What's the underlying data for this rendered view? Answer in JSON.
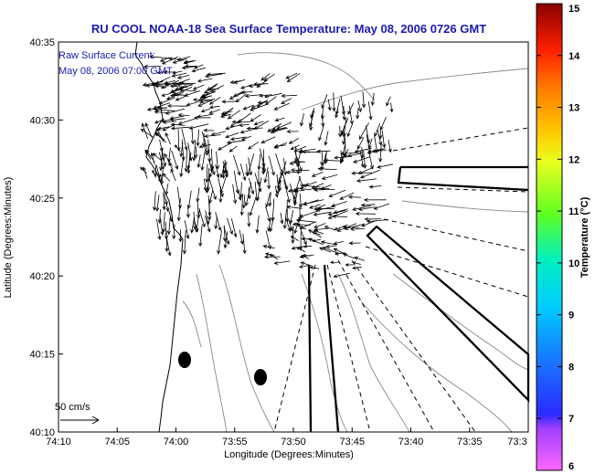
{
  "chart_data": {
    "type": "vector-field-map",
    "title": "RU COOL  NOAA-18  Sea Surface Temperature:  May 08, 2006 0726 GMT",
    "xlabel": "Longitude (Degrees:Minutes)",
    "ylabel": "Latitude (Degrees:Minutes)",
    "x_ticks": [
      "74:10",
      "74:05",
      "74:00",
      "73:55",
      "73:50",
      "73:45",
      "73:40",
      "73:35",
      "73:3"
    ],
    "y_ticks": [
      "40:10",
      "40:15",
      "40:20",
      "40:25",
      "40:30",
      "40:35"
    ],
    "xlim_minutes_west": [
      70,
      30
    ],
    "ylim_minutes_north": [
      10,
      35
    ],
    "annotations": [
      "Raw Surface Current:",
      "May 08, 2006 07:00 GMT"
    ],
    "scale_label": "50 cm/s",
    "colorbar": {
      "label": "Temperature (°C)",
      "ticks": [
        "6",
        "7",
        "8",
        "9",
        "10",
        "11",
        "12",
        "13",
        "14",
        "15"
      ],
      "range": [
        6,
        15
      ]
    },
    "markers": [
      {
        "lon_min_w": 59.0,
        "lat_min_n": 14.7
      },
      {
        "lon_min_w": 52.2,
        "lat_min_n": 13.5
      }
    ]
  }
}
